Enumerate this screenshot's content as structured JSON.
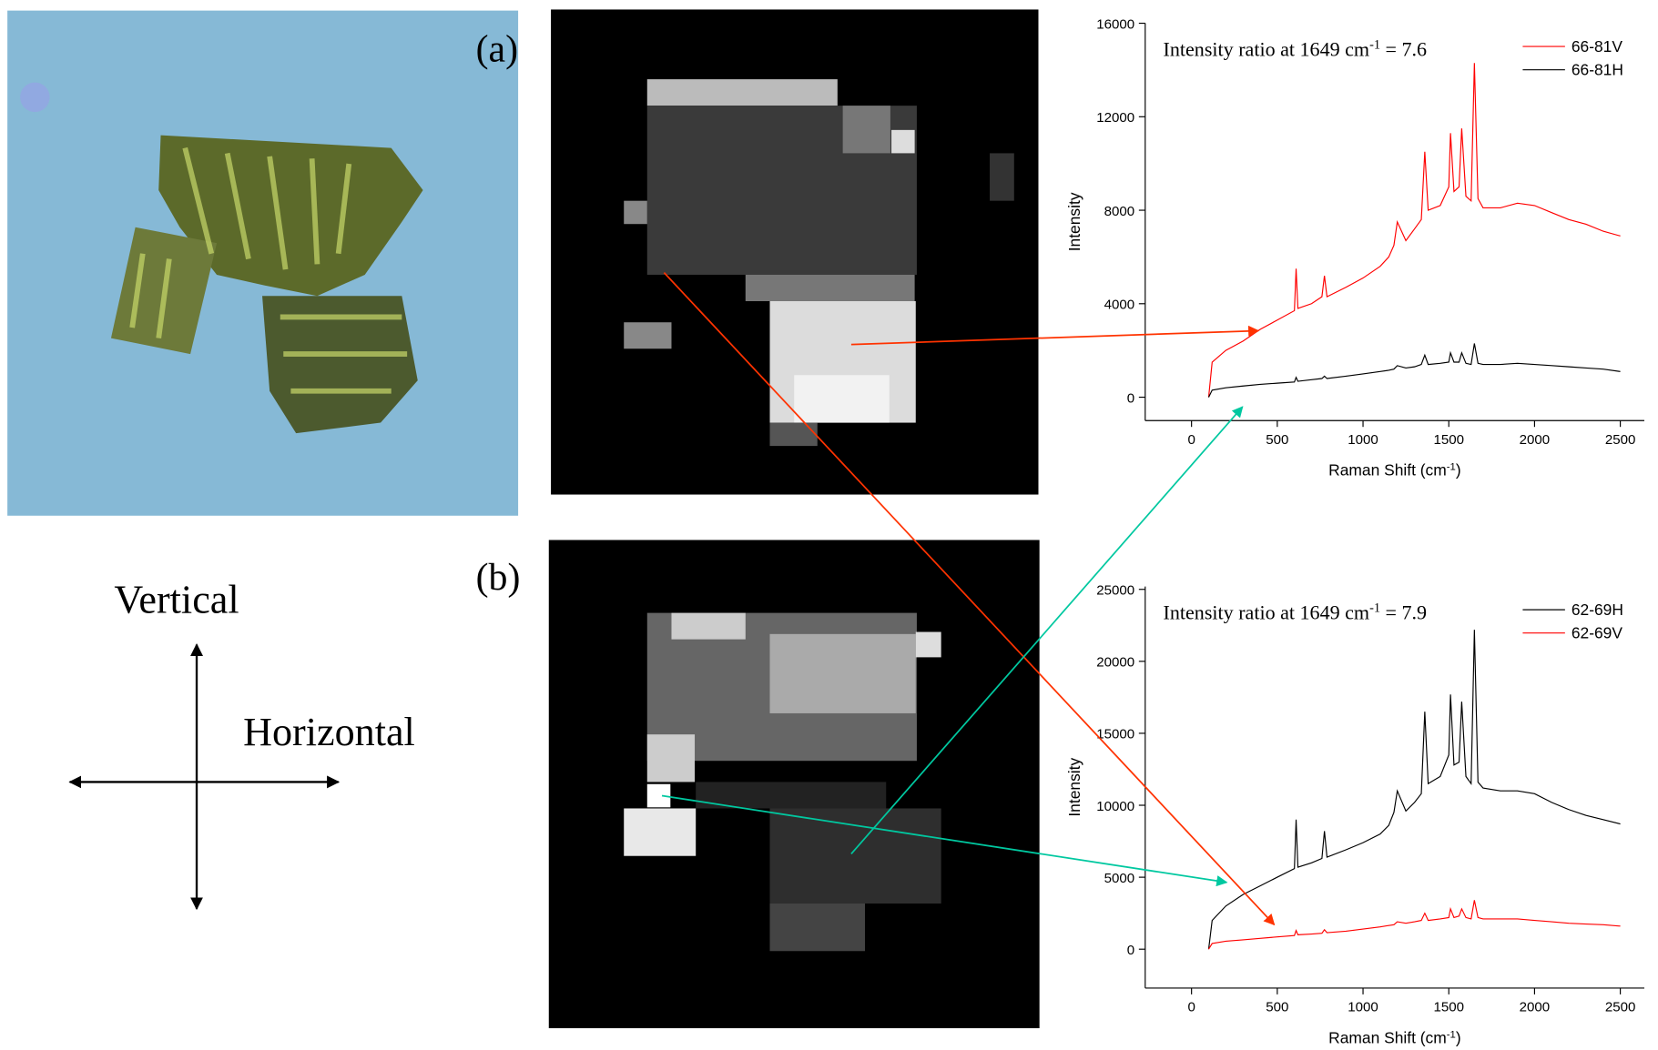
{
  "labels": {
    "a": "(a)",
    "b": "(b)"
  },
  "directions": {
    "vertical": "Vertical",
    "horizontal": "Horizontal"
  },
  "chart_data": [
    {
      "type": "line",
      "annotation": {
        "text": "Intensity ratio at 1649 cm",
        "sup": "-1",
        "rest": " = 7.6"
      },
      "xlabel": {
        "text": "Raman Shift (cm",
        "sup": "-1",
        "rest": ")"
      },
      "ylabel": "Intensity",
      "x": [
        100,
        120,
        200,
        300,
        400,
        500,
        600,
        610,
        620,
        700,
        760,
        775,
        790,
        900,
        1000,
        1100,
        1150,
        1180,
        1200,
        1250,
        1300,
        1340,
        1360,
        1380,
        1450,
        1500,
        1510,
        1530,
        1560,
        1575,
        1600,
        1630,
        1649,
        1670,
        1700,
        1800,
        1900,
        2000,
        2100,
        2200,
        2300,
        2400,
        2500
      ],
      "series": [
        {
          "name": "66-81V",
          "color": "#ff0000",
          "values": [
            0,
            1500,
            2000,
            2400,
            2900,
            3300,
            3700,
            5500,
            3800,
            4000,
            4300,
            5200,
            4300,
            4700,
            5100,
            5600,
            6000,
            6500,
            7500,
            6700,
            7200,
            7600,
            10500,
            8000,
            8200,
            9000,
            11300,
            8800,
            9000,
            11500,
            8600,
            8400,
            14300,
            8500,
            8100,
            8100,
            8300,
            8200,
            7900,
            7600,
            7400,
            7100,
            6900
          ]
        },
        {
          "name": "66-81H",
          "color": "#000000",
          "values": [
            0,
            300,
            400,
            480,
            550,
            600,
            650,
            850,
            680,
            750,
            800,
            900,
            800,
            900,
            1000,
            1100,
            1150,
            1200,
            1350,
            1250,
            1300,
            1400,
            1800,
            1400,
            1450,
            1500,
            1900,
            1500,
            1500,
            1900,
            1450,
            1400,
            2300,
            1450,
            1400,
            1400,
            1450,
            1400,
            1350,
            1300,
            1250,
            1200,
            1100
          ]
        }
      ],
      "xlim": [
        -270,
        2640
      ],
      "ylim": [
        -1000,
        16000
      ],
      "xticks": [
        0,
        500,
        1000,
        1500,
        2000,
        2500
      ],
      "yticks": [
        0,
        4000,
        8000,
        12000,
        16000
      ],
      "legend": "upper right"
    },
    {
      "type": "line",
      "annotation": {
        "text": "Intensity ratio at 1649 cm",
        "sup": "-1",
        "rest": " = 7.9"
      },
      "xlabel": {
        "text": "Raman Shift (cm",
        "sup": "-1",
        "rest": ")"
      },
      "ylabel": "Intensity",
      "x": [
        100,
        120,
        200,
        300,
        400,
        500,
        600,
        610,
        620,
        700,
        760,
        775,
        790,
        900,
        1000,
        1100,
        1150,
        1180,
        1200,
        1250,
        1300,
        1340,
        1360,
        1380,
        1450,
        1500,
        1510,
        1530,
        1560,
        1575,
        1600,
        1630,
        1649,
        1670,
        1700,
        1800,
        1900,
        2000,
        2100,
        2200,
        2300,
        2400,
        2500
      ],
      "series": [
        {
          "name": "62-69H",
          "color": "#000000",
          "values": [
            0,
            2000,
            3000,
            3800,
            4400,
            5000,
            5600,
            9000,
            5700,
            6000,
            6300,
            8200,
            6400,
            6900,
            7400,
            8000,
            8600,
            9500,
            11000,
            9600,
            10200,
            10800,
            16500,
            11500,
            12000,
            13500,
            17700,
            12800,
            13000,
            17200,
            12000,
            11500,
            22200,
            11600,
            11200,
            11000,
            11000,
            10800,
            10200,
            9700,
            9300,
            9000,
            8700
          ]
        },
        {
          "name": "62-69V",
          "color": "#ff0000",
          "values": [
            0,
            400,
            550,
            650,
            750,
            850,
            950,
            1300,
            1000,
            1050,
            1100,
            1350,
            1150,
            1250,
            1400,
            1550,
            1650,
            1700,
            1900,
            1800,
            1900,
            2000,
            2500,
            2000,
            2100,
            2200,
            2800,
            2200,
            2300,
            2800,
            2200,
            2100,
            3400,
            2200,
            2100,
            2100,
            2100,
            2000,
            1900,
            1800,
            1750,
            1700,
            1600
          ]
        }
      ],
      "xlim": [
        -270,
        2640
      ],
      "ylim": [
        -2700,
        25200
      ],
      "xticks": [
        0,
        500,
        1000,
        1500,
        2000,
        2500
      ],
      "yticks": [
        0,
        5000,
        10000,
        15000,
        20000,
        25000
      ],
      "legend": "upper right"
    }
  ]
}
